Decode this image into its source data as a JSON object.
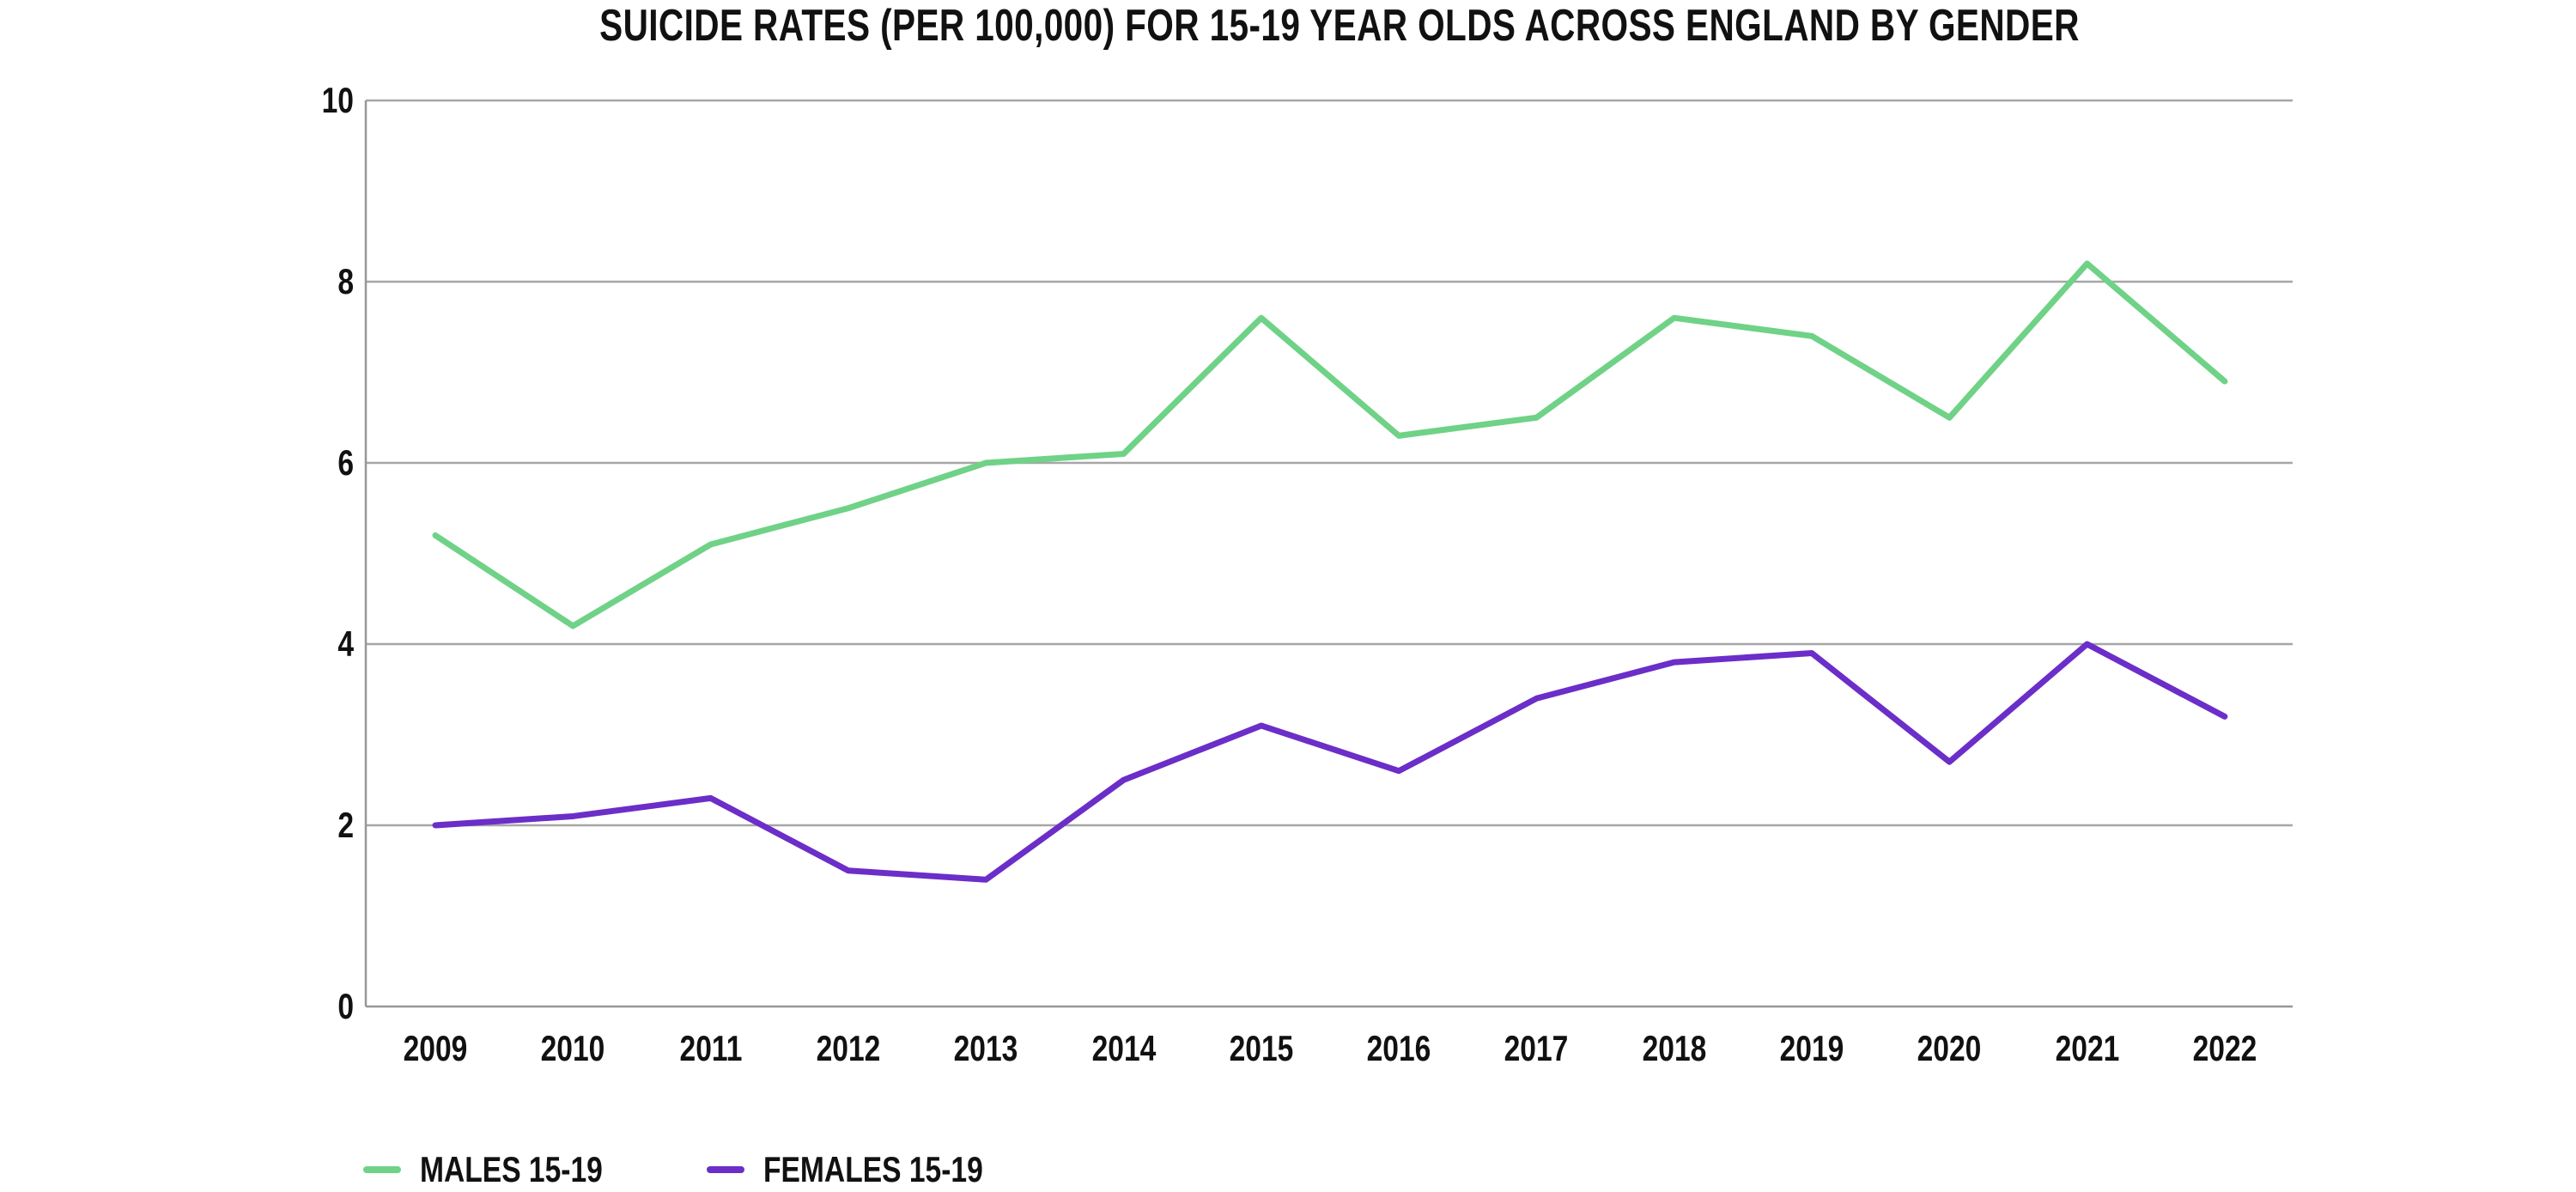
{
  "chart_data": {
    "type": "line",
    "title": "SUICIDE RATES (PER 100,000) FOR 15-19 YEAR OLDS ACROSS ENGLAND BY GENDER",
    "x": [
      "2009",
      "2010",
      "2011",
      "2012",
      "2013",
      "2014",
      "2015",
      "2016",
      "2017",
      "2018",
      "2019",
      "2020",
      "2021",
      "2022"
    ],
    "series": [
      {
        "name": "MALES 15-19",
        "color": "#6FD287",
        "values": [
          5.2,
          4.2,
          5.1,
          5.5,
          6.0,
          6.1,
          7.6,
          6.3,
          6.5,
          7.6,
          7.4,
          6.5,
          8.2,
          6.9
        ]
      },
      {
        "name": "FEMALES 15-19",
        "color": "#6B2EC8",
        "values": [
          2.0,
          2.1,
          2.3,
          1.5,
          1.4,
          2.5,
          3.1,
          2.6,
          3.4,
          3.8,
          3.9,
          2.7,
          4.0,
          3.2
        ]
      }
    ],
    "ylim": [
      0,
      10
    ],
    "yticks": [
      0,
      2,
      4,
      6,
      8,
      10
    ],
    "xlabel": "",
    "ylabel": "",
    "grid": "horizontal",
    "legend_position": "bottom-left",
    "colors": {
      "background": "#ffffff",
      "gridline": "#a6a6a6",
      "axis": "#979797",
      "text": "#111111"
    }
  }
}
